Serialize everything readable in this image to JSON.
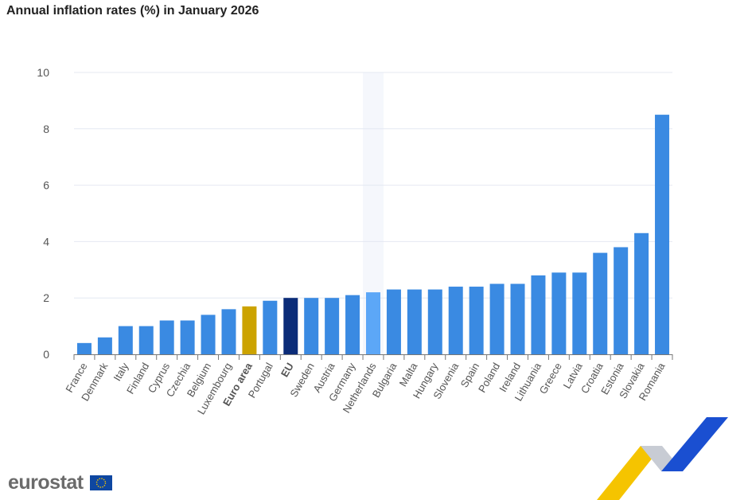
{
  "chart_data": {
    "type": "bar",
    "title": "Annual inflation rates (%) in January 2026",
    "xlabel": "",
    "ylabel": "",
    "ylim": [
      0,
      10
    ],
    "yticks": [
      0,
      2,
      4,
      6,
      8,
      10
    ],
    "grid": true,
    "categories": [
      "France",
      "Denmark",
      "Italy",
      "Finland",
      "Cyprus",
      "Czechia",
      "Belgium",
      "Luxembourg",
      "Euro area",
      "Portugal",
      "EU",
      "Sweden",
      "Austria",
      "Germany",
      "Netherlands",
      "Bulgaria",
      "Malta",
      "Hungary",
      "Slovenia",
      "Spain",
      "Poland",
      "Ireland",
      "Lithuania",
      "Greece",
      "Latvia",
      "Croatia",
      "Estonia",
      "Slovakia",
      "Romania"
    ],
    "values": [
      0.4,
      0.6,
      1.0,
      1.0,
      1.2,
      1.2,
      1.4,
      1.6,
      1.7,
      1.9,
      2.0,
      2.0,
      2.0,
      2.1,
      2.2,
      2.3,
      2.3,
      2.3,
      2.4,
      2.4,
      2.5,
      2.5,
      2.8,
      2.9,
      2.9,
      3.6,
      3.8,
      4.3,
      8.5
    ],
    "bold_categories": [
      "Euro area",
      "EU"
    ],
    "hovered_category": "Netherlands",
    "colors": {
      "default": "#3a8ae2",
      "euro_area": "#cca300",
      "eu": "#0b2c78",
      "hovered": "#5ca7f7",
      "grid": "#e4e8f2",
      "hover_band": "#f5f7fc"
    }
  },
  "logo": {
    "text": "eurostat"
  }
}
